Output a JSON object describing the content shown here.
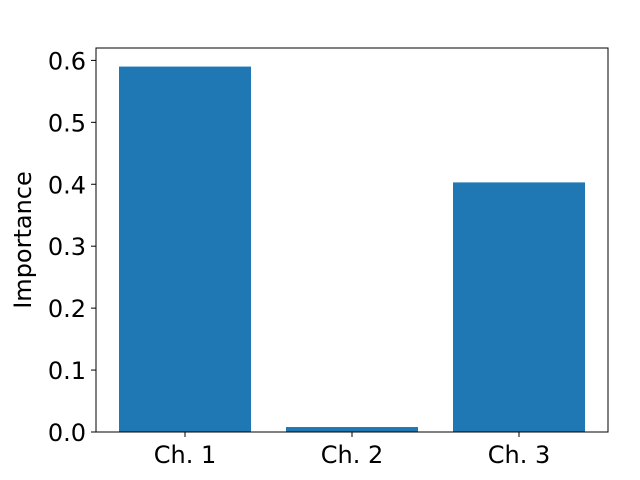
{
  "chart_data": {
    "type": "bar",
    "categories": [
      "Ch. 1",
      "Ch. 2",
      "Ch. 3"
    ],
    "values": [
      0.59,
      0.008,
      0.403
    ],
    "title": "",
    "xlabel": "",
    "ylabel": "Importance",
    "ylim": [
      0,
      0.62
    ],
    "yticks": [
      0.0,
      0.1,
      0.2,
      0.3,
      0.4,
      0.5,
      0.6
    ],
    "ytick_labels": [
      "0.0",
      "0.1",
      "0.2",
      "0.3",
      "0.4",
      "0.5",
      "0.6"
    ],
    "grid": false,
    "legend": "none",
    "bar_color": "#1f77b4"
  }
}
